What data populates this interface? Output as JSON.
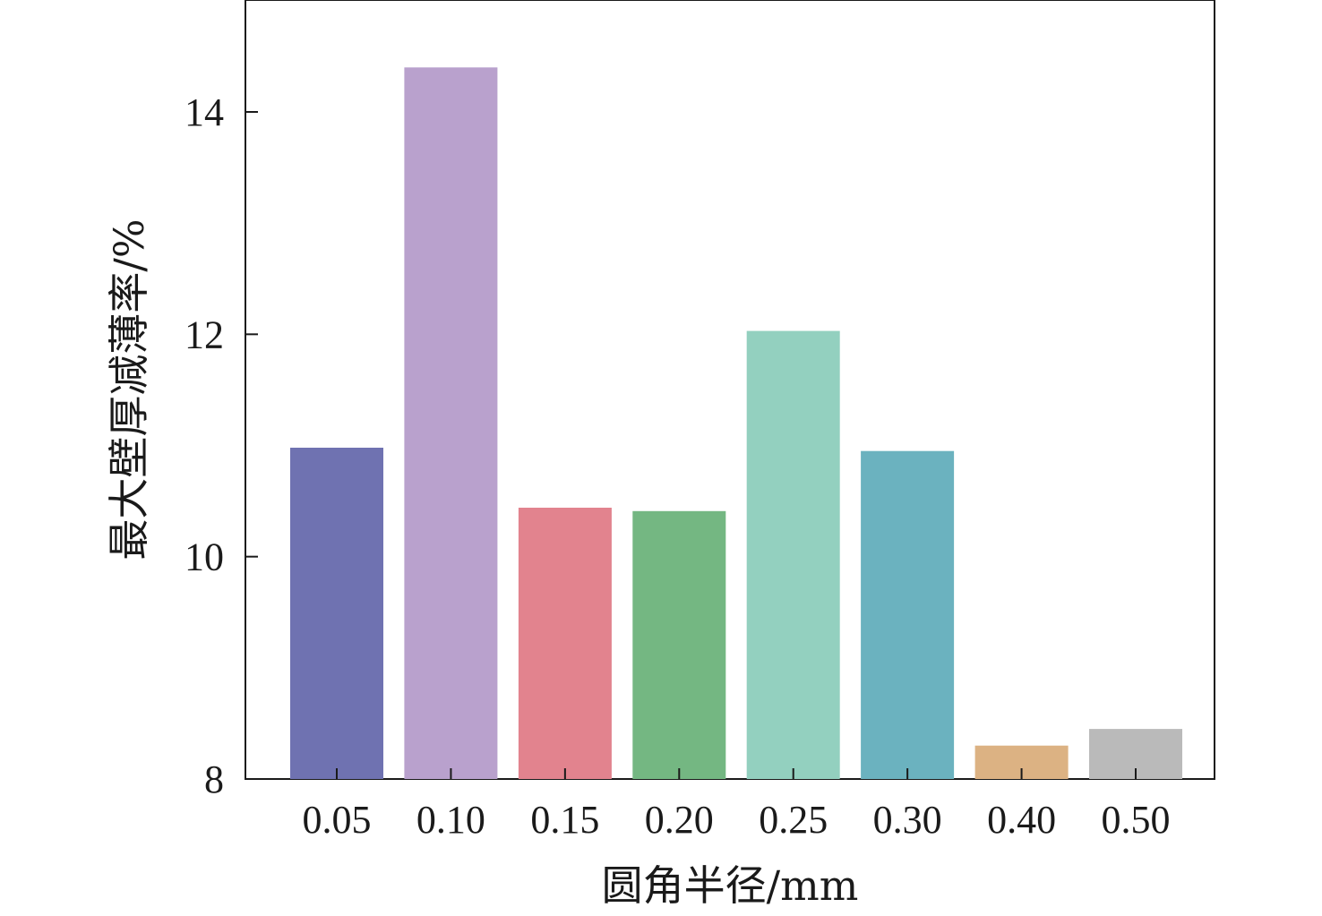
{
  "chart_data": {
    "type": "bar",
    "title": "",
    "xlabel": "圆角半径/mm",
    "ylabel": "最大壁厚减薄率/%",
    "categories": [
      "0.05",
      "0.10",
      "0.15",
      "0.20",
      "0.25",
      "0.30",
      "0.40",
      "0.50"
    ],
    "values": [
      10.98,
      14.4,
      10.44,
      10.41,
      12.03,
      10.95,
      8.3,
      8.45
    ],
    "colors": [
      "#6f72b1",
      "#b9a1cd",
      "#e2838e",
      "#74b782",
      "#93d0bf",
      "#6bb2bf",
      "#dcb283",
      "#bababa"
    ],
    "ylim": [
      8,
      15
    ],
    "yticks": [
      8,
      10,
      12,
      14
    ],
    "grid": false,
    "legend": "none"
  }
}
